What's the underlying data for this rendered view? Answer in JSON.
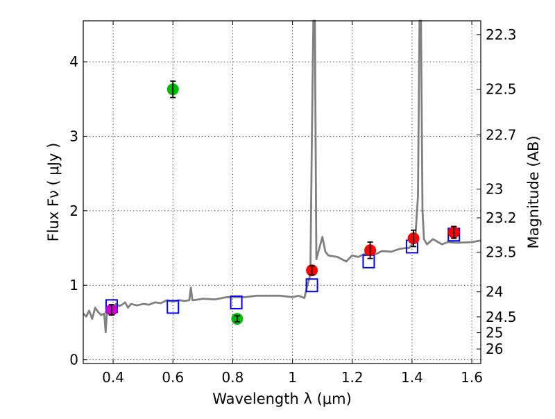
{
  "chart_data": {
    "type": "scatter",
    "title": "",
    "xlabel": "Wavelength  λ (μm)",
    "ylabel": "Flux  Fν  ( μJy )",
    "ylabel_right": "Magnitude (AB)",
    "xlim": [
      0.3,
      1.63
    ],
    "ylim": [
      -0.05,
      4.55
    ],
    "grid": true,
    "x_ticks": [
      0.4,
      0.6,
      0.8,
      1.0,
      1.2,
      1.4,
      1.6
    ],
    "x_tick_labels": [
      "0.4",
      "0.6",
      "0.8",
      "1",
      "1.2",
      "1.4",
      "1.6"
    ],
    "y_ticks": [
      0,
      1,
      2,
      3,
      4
    ],
    "y_tick_labels": [
      "0",
      "1",
      "2",
      "3",
      "4"
    ],
    "right_ticks": [
      {
        "label": "22.3",
        "mag": 22.3
      },
      {
        "label": "22.5",
        "mag": 22.5
      },
      {
        "label": "22.7",
        "mag": 22.7
      },
      {
        "label": "23",
        "mag": 23.0
      },
      {
        "label": "23.2",
        "mag": 23.2
      },
      {
        "label": "23.5",
        "mag": 23.5
      },
      {
        "label": "24",
        "mag": 24.0
      },
      {
        "label": "24.5",
        "mag": 24.5
      },
      {
        "label": "25",
        "mag": 25.0
      },
      {
        "label": "26",
        "mag": 26.0
      }
    ],
    "colors": {
      "spectrum": "#808080",
      "model": "#0000ff",
      "observed_red": "#ff0000",
      "observed_green": "#00bb00",
      "observed_magenta": "#cc00cc",
      "errorbar": "#000000"
    },
    "series": [
      {
        "name": "model spectrum",
        "kind": "line",
        "x": [
          0.3,
          0.31,
          0.32,
          0.33,
          0.34,
          0.35,
          0.36,
          0.37,
          0.375,
          0.38,
          0.39,
          0.4,
          0.41,
          0.42,
          0.43,
          0.44,
          0.45,
          0.46,
          0.48,
          0.5,
          0.52,
          0.54,
          0.56,
          0.58,
          0.6,
          0.62,
          0.64,
          0.655,
          0.66,
          0.665,
          0.67,
          0.7,
          0.74,
          0.78,
          0.8,
          0.84,
          0.88,
          0.92,
          0.96,
          1.0,
          1.02,
          1.04,
          1.05,
          1.06,
          1.065,
          1.07,
          1.075,
          1.08,
          1.09,
          1.1,
          1.11,
          1.12,
          1.15,
          1.18,
          1.2,
          1.22,
          1.25,
          1.28,
          1.3,
          1.33,
          1.36,
          1.38,
          1.39,
          1.4,
          1.41,
          1.42,
          1.425,
          1.43,
          1.435,
          1.44,
          1.45,
          1.47,
          1.5,
          1.52,
          1.55,
          1.6,
          1.63
        ],
        "y": [
          0.62,
          0.58,
          0.66,
          0.55,
          0.7,
          0.64,
          0.6,
          0.62,
          0.37,
          0.7,
          0.74,
          0.62,
          0.75,
          0.72,
          0.74,
          0.77,
          0.7,
          0.75,
          0.73,
          0.75,
          0.74,
          0.77,
          0.76,
          0.8,
          0.78,
          0.8,
          0.79,
          0.8,
          0.97,
          0.8,
          0.8,
          0.82,
          0.81,
          0.84,
          0.84,
          0.84,
          0.86,
          0.86,
          0.86,
          0.84,
          0.86,
          0.83,
          1.0,
          1.15,
          3.0,
          4.55,
          4.55,
          1.35,
          1.5,
          1.65,
          1.45,
          1.4,
          1.38,
          1.32,
          1.4,
          1.38,
          1.44,
          1.42,
          1.46,
          1.45,
          1.49,
          1.5,
          1.5,
          1.55,
          1.57,
          2.2,
          4.55,
          4.55,
          2.0,
          1.62,
          1.55,
          1.62,
          1.55,
          1.58,
          1.57,
          1.58,
          1.6
        ]
      },
      {
        "name": "model photometry",
        "kind": "open-square",
        "x": [
          0.395,
          0.6,
          0.812,
          1.065,
          1.255,
          1.4,
          1.54
        ],
        "y": [
          0.72,
          0.71,
          0.77,
          1.0,
          1.32,
          1.52,
          1.68
        ]
      },
      {
        "name": "observed photometry",
        "kind": "filled-circle",
        "points": [
          {
            "x": 0.395,
            "y": 0.67,
            "err": 0.07,
            "color": "observed_magenta"
          },
          {
            "x": 0.6,
            "y": 3.63,
            "err": 0.11,
            "color": "observed_green"
          },
          {
            "x": 0.815,
            "y": 0.55,
            "err": 0.04,
            "color": "observed_green"
          },
          {
            "x": 1.065,
            "y": 1.2,
            "err": 0.06,
            "color": "observed_red"
          },
          {
            "x": 1.26,
            "y": 1.47,
            "err": 0.11,
            "color": "observed_red"
          },
          {
            "x": 1.405,
            "y": 1.63,
            "err": 0.11,
            "color": "observed_red"
          },
          {
            "x": 1.54,
            "y": 1.71,
            "err": 0.08,
            "color": "observed_red"
          }
        ]
      }
    ]
  }
}
